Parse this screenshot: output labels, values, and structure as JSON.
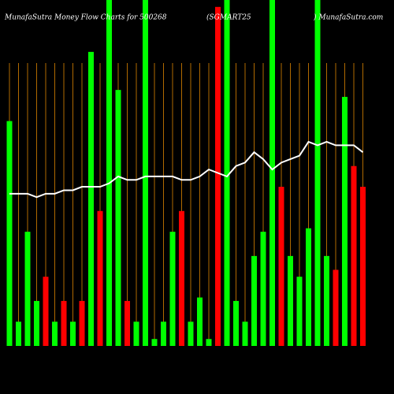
{
  "chart_data": {
    "type": "bar",
    "title": "MunafaSutra  Money Flow  Charts for 500268",
    "subtitle": "(SGMART25",
    "source": ") MunafaSutra.com",
    "categories": [
      null,
      null,
      null,
      null,
      null,
      null,
      null,
      null,
      null,
      null,
      null,
      null,
      null,
      null,
      null,
      null,
      null,
      null,
      null,
      null,
      null,
      null,
      null,
      null,
      null,
      null,
      null,
      null,
      null,
      null,
      null,
      null,
      null,
      null,
      null,
      null,
      null,
      null,
      null,
      null
    ],
    "ylim": [
      0,
      100
    ],
    "series": [
      {
        "type": "bar",
        "values": [
          65,
          7,
          33,
          13,
          20,
          7,
          13,
          7,
          13,
          85,
          39,
          100,
          74,
          13,
          7,
          100,
          2,
          7,
          33,
          39,
          7,
          14,
          2,
          98,
          100,
          13,
          7,
          26,
          33,
          100,
          46,
          26,
          20,
          34,
          100,
          26,
          22,
          72,
          52,
          46
        ],
        "colors": [
          "#00ff00",
          "#00ff00",
          "#00ff00",
          "#00ff00",
          "#ff0000",
          "#00ff00",
          "#ff0000",
          "#00ff00",
          "#ff0000",
          "#00ff00",
          "#ff0000",
          "#00ff00",
          "#00ff00",
          "#ff0000",
          "#00ff00",
          "#00ff00",
          "#00ff00",
          "#00ff00",
          "#00ff00",
          "#ff0000",
          "#00ff00",
          "#00ff00",
          "#00ff00",
          "#ff0000",
          "#00ff00",
          "#00ff00",
          "#00ff00",
          "#00ff00",
          "#00ff00",
          "#00ff00",
          "#ff0000",
          "#00ff00",
          "#00ff00",
          "#00ff00",
          "#00ff00",
          "#00ff00",
          "#ff0000",
          "#00ff00",
          "#ff0000",
          "#ff0000"
        ]
      },
      {
        "type": "line",
        "color": "#ffffff",
        "values": [
          44,
          44,
          44,
          43,
          44,
          44,
          45,
          45,
          46,
          46,
          46,
          47,
          49,
          48,
          48,
          49,
          49,
          49,
          49,
          48,
          48,
          49,
          51,
          50,
          49,
          52,
          53,
          56,
          54,
          51,
          53,
          54,
          55,
          59,
          58,
          59,
          58,
          58,
          58,
          56
        ]
      }
    ]
  }
}
